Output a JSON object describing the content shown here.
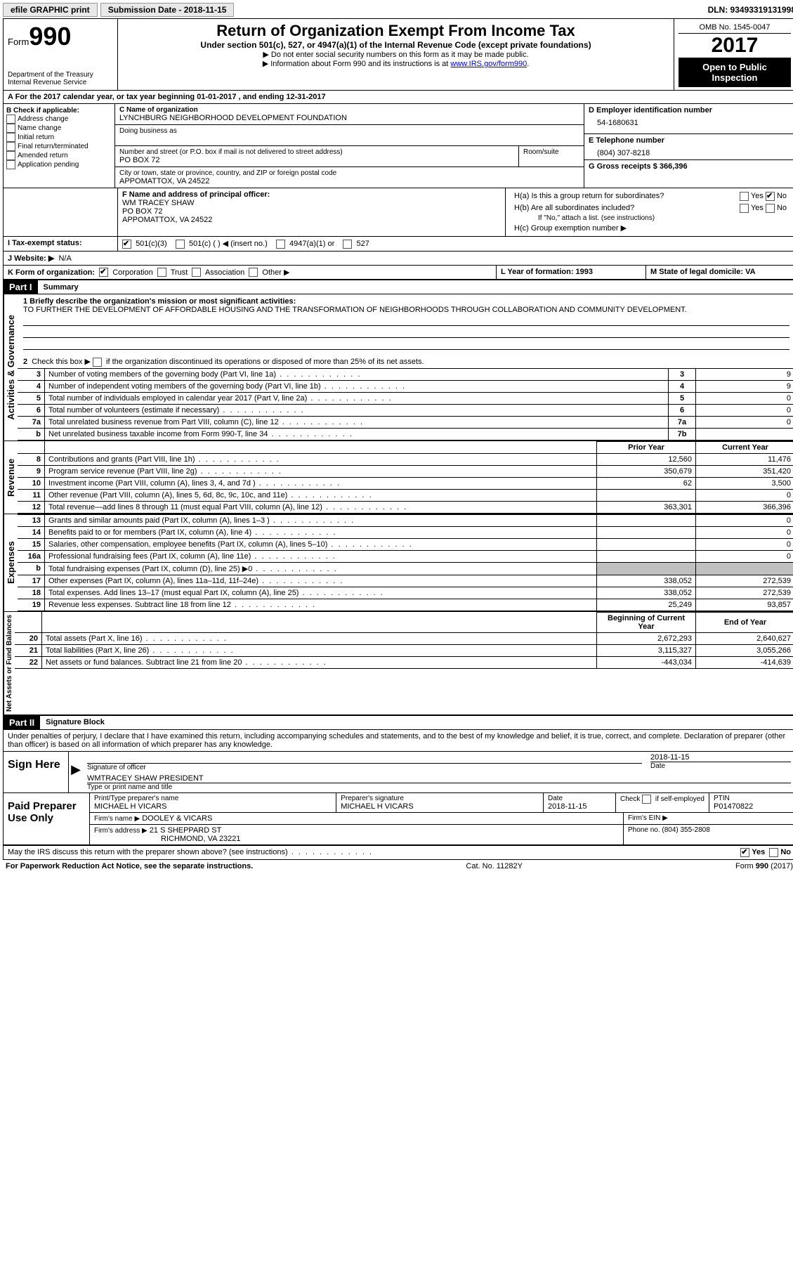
{
  "topbar": {
    "efile": "efile GRAPHIC print",
    "submission_label": "Submission Date - 2018-11-15",
    "dln": "DLN: 93493319131998"
  },
  "header": {
    "form_word": "Form",
    "form_number": "990",
    "dept1": "Department of the Treasury",
    "dept2": "Internal Revenue Service",
    "title": "Return of Organization Exempt From Income Tax",
    "subtitle": "Under section 501(c), 527, or 4947(a)(1) of the Internal Revenue Code (except private foundations)",
    "instr1": "Do not enter social security numbers on this form as it may be made public.",
    "instr2_pre": "Information about Form 990 and its instructions is at ",
    "instr2_link": "www.IRS.gov/form990",
    "omb": "OMB No. 1545-0047",
    "year": "2017",
    "open": "Open to Public Inspection"
  },
  "lineA": "A  For the 2017 calendar year, or tax year beginning 01-01-2017   , and ending 12-31-2017",
  "boxB": {
    "header": "B Check if applicable:",
    "items": [
      "Address change",
      "Name change",
      "Initial return",
      "Final return/terminated",
      "Amended return",
      "Application pending"
    ]
  },
  "boxC": {
    "name_label": "C Name of organization",
    "name": "LYNCHBURG NEIGHBORHOOD DEVELOPMENT FOUNDATION",
    "dba_label": "Doing business as",
    "street_label": "Number and street (or P.O. box if mail is not delivered to street address)",
    "room_label": "Room/suite",
    "street": "PO BOX 72",
    "city_label": "City or town, state or province, country, and ZIP or foreign postal code",
    "city": "APPOMATTOX, VA  24522"
  },
  "boxD": {
    "label": "D Employer identification number",
    "value": "54-1680631"
  },
  "boxE": {
    "label": "E Telephone number",
    "value": "(804) 307-8218"
  },
  "boxG": {
    "label": "G Gross receipts $ 366,396"
  },
  "boxF": {
    "label": "F Name and address of principal officer:",
    "name": "WM TRACEY SHAW",
    "street": "PO BOX 72",
    "city": "APPOMATTOX, VA  24522"
  },
  "boxH": {
    "a_label": "H(a)  Is this a group return for subordinates?",
    "b_label": "H(b)  Are all subordinates included?",
    "b_note": "If \"No,\" attach a list. (see instructions)",
    "c_label": "H(c)  Group exemption number ▶",
    "yes": "Yes",
    "no": "No"
  },
  "lineI": {
    "label": "I  Tax-exempt status:",
    "opts": [
      "501(c)(3)",
      "501(c) (  ) ◀ (insert no.)",
      "4947(a)(1) or",
      "527"
    ]
  },
  "lineJ": {
    "label": "J  Website: ▶",
    "value": "N/A"
  },
  "lineK": {
    "label": "K Form of organization:",
    "opts": [
      "Corporation",
      "Trust",
      "Association",
      "Other ▶"
    ]
  },
  "lineL": "L Year of formation: 1993",
  "lineM": "M State of legal domicile: VA",
  "part1": {
    "num": "Part I",
    "title": "Summary"
  },
  "mission": {
    "label": "1  Briefly describe the organization's mission or most significant activities:",
    "text": "TO FURTHER THE DEVELOPMENT OF AFFORDABLE HOUSING AND THE TRANSFORMATION OF NEIGHBORHOODS THROUGH COLLABORATION AND COMMUNITY DEVELOPMENT."
  },
  "line2": "2  Check this box ▶        if the organization discontinued its operations or disposed of more than 25% of its net assets.",
  "gov_side": "Activities & Governance",
  "rev_side": "Revenue",
  "exp_side": "Expenses",
  "net_side": "Net Assets or Fund Balances",
  "col_headers": {
    "prior": "Prior Year",
    "current": "Current Year",
    "boy": "Beginning of Current Year",
    "eoy": "End of Year"
  },
  "lines_gov": [
    {
      "n": "3",
      "t": "Number of voting members of the governing body (Part VI, line 1a)",
      "b": "3",
      "v": "9"
    },
    {
      "n": "4",
      "t": "Number of independent voting members of the governing body (Part VI, line 1b)",
      "b": "4",
      "v": "9"
    },
    {
      "n": "5",
      "t": "Total number of individuals employed in calendar year 2017 (Part V, line 2a)",
      "b": "5",
      "v": "0"
    },
    {
      "n": "6",
      "t": "Total number of volunteers (estimate if necessary)",
      "b": "6",
      "v": "0"
    },
    {
      "n": "7a",
      "t": "Total unrelated business revenue from Part VIII, column (C), line 12",
      "b": "7a",
      "v": "0"
    },
    {
      "n": "b",
      "t": "Net unrelated business taxable income from Form 990-T, line 34",
      "b": "7b",
      "v": ""
    }
  ],
  "lines_rev": [
    {
      "n": "8",
      "t": "Contributions and grants (Part VIII, line 1h)",
      "p": "12,560",
      "c": "11,476"
    },
    {
      "n": "9",
      "t": "Program service revenue (Part VIII, line 2g)",
      "p": "350,679",
      "c": "351,420"
    },
    {
      "n": "10",
      "t": "Investment income (Part VIII, column (A), lines 3, 4, and 7d )",
      "p": "62",
      "c": "3,500"
    },
    {
      "n": "11",
      "t": "Other revenue (Part VIII, column (A), lines 5, 6d, 8c, 9c, 10c, and 11e)",
      "p": "",
      "c": "0"
    },
    {
      "n": "12",
      "t": "Total revenue—add lines 8 through 11 (must equal Part VIII, column (A), line 12)",
      "p": "363,301",
      "c": "366,396"
    }
  ],
  "lines_exp": [
    {
      "n": "13",
      "t": "Grants and similar amounts paid (Part IX, column (A), lines 1–3 )",
      "p": "",
      "c": "0"
    },
    {
      "n": "14",
      "t": "Benefits paid to or for members (Part IX, column (A), line 4)",
      "p": "",
      "c": "0"
    },
    {
      "n": "15",
      "t": "Salaries, other compensation, employee benefits (Part IX, column (A), lines 5–10)",
      "p": "",
      "c": "0"
    },
    {
      "n": "16a",
      "t": "Professional fundraising fees (Part IX, column (A), line 11e)",
      "p": "",
      "c": "0"
    },
    {
      "n": "b",
      "t": "Total fundraising expenses (Part IX, column (D), line 25) ▶0",
      "p": "SHADE",
      "c": "SHADE"
    },
    {
      "n": "17",
      "t": "Other expenses (Part IX, column (A), lines 11a–11d, 11f–24e)",
      "p": "338,052",
      "c": "272,539"
    },
    {
      "n": "18",
      "t": "Total expenses. Add lines 13–17 (must equal Part IX, column (A), line 25)",
      "p": "338,052",
      "c": "272,539"
    },
    {
      "n": "19",
      "t": "Revenue less expenses. Subtract line 18 from line 12",
      "p": "25,249",
      "c": "93,857"
    }
  ],
  "lines_net": [
    {
      "n": "20",
      "t": "Total assets (Part X, line 16)",
      "p": "2,672,293",
      "c": "2,640,627"
    },
    {
      "n": "21",
      "t": "Total liabilities (Part X, line 26)",
      "p": "3,115,327",
      "c": "3,055,266"
    },
    {
      "n": "22",
      "t": "Net assets or fund balances. Subtract line 21 from line 20",
      "p": "-443,034",
      "c": "-414,639"
    }
  ],
  "part2": {
    "num": "Part II",
    "title": "Signature Block"
  },
  "perjury": "Under penalties of perjury, I declare that I have examined this return, including accompanying schedules and statements, and to the best of my knowledge and belief, it is true, correct, and complete. Declaration of preparer (other than officer) is based on all information of which preparer has any knowledge.",
  "sign": {
    "here": "Sign Here",
    "sig_officer": "Signature of officer",
    "date": "Date",
    "date_val": "2018-11-15",
    "name_title": "WMTRACEY SHAW PRESIDENT",
    "type_name": "Type or print name and title"
  },
  "paid": {
    "label": "Paid Preparer Use Only",
    "print_label": "Print/Type preparer's name",
    "print_val": "MICHAEL H VICARS",
    "sig_label": "Preparer's signature",
    "sig_val": "MICHAEL H VICARS",
    "date_label": "Date",
    "date_val": "2018-11-15",
    "check_label": "Check        if self-employed",
    "ptin_label": "PTIN",
    "ptin_val": "P01470822",
    "firm_name_label": "Firm's name    ▶",
    "firm_name": "DOOLEY & VICARS",
    "firm_ein_label": "Firm's EIN ▶",
    "firm_addr_label": "Firm's address ▶",
    "firm_addr1": "21 S SHEPPARD ST",
    "firm_addr2": "RICHMOND, VA  23221",
    "phone_label": "Phone no. (804) 355-2808"
  },
  "discuss": "May the IRS discuss this return with the preparer shown above? (see instructions)",
  "footer": {
    "pra": "For Paperwork Reduction Act Notice, see the separate instructions.",
    "cat": "Cat. No. 11282Y",
    "form": "Form 990 (2017)"
  }
}
